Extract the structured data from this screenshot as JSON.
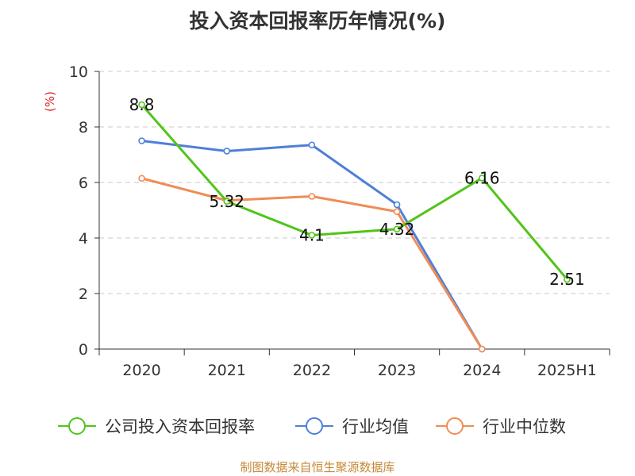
{
  "chart_data": {
    "type": "line",
    "title": "投入资本回报率历年情况(%)",
    "ylabel": "(%)",
    "categories": [
      "2020",
      "2021",
      "2022",
      "2023",
      "2024",
      "2025H1"
    ],
    "ylim": [
      0,
      10
    ],
    "yticks": [
      0,
      2,
      4,
      6,
      8,
      10
    ],
    "grid": true,
    "legend_position": "bottom",
    "series": [
      {
        "name": "公司投入资本回报率",
        "color": "#52c41a",
        "values": [
          8.8,
          5.32,
          4.1,
          4.32,
          6.16,
          2.51
        ],
        "labels": [
          "8.8",
          "5.32",
          "4.1",
          "4.32",
          "6.16",
          "2.51"
        ]
      },
      {
        "name": "行业均值",
        "color": "#4e7fd9",
        "values": [
          7.5,
          7.13,
          7.35,
          5.2,
          0,
          null
        ]
      },
      {
        "name": "行业中位数",
        "color": "#f08c55",
        "values": [
          6.15,
          5.35,
          5.5,
          4.95,
          0,
          null
        ]
      }
    ]
  },
  "footer": {
    "source": "制图数据来自恒生聚源数据库"
  }
}
